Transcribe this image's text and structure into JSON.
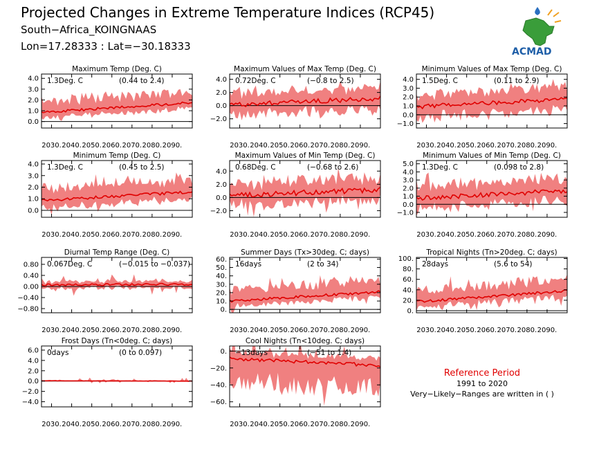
{
  "header": {
    "title": "Projected Changes in Extreme Temperature Indices (RCP45)",
    "location": "South−Africa_KOINGNAAS",
    "coords": "Lon=17.28333 : Lat=−30.18333"
  },
  "logo": {
    "text": "ACMAD"
  },
  "reference": {
    "title": "Reference Period",
    "period": "1991 to 2020",
    "note": "Very−Likely−Ranges are written in ( )"
  },
  "colors": {
    "band": "#f08080",
    "line": "#e00000",
    "zero": "#000000"
  },
  "chart_data": [
    {
      "type": "area",
      "title": "Maximum Temp (Deg. C)",
      "change": "1.3Deg. C",
      "range": "(0.44 to 2.4)",
      "xlim": [
        2025,
        2100
      ],
      "ylim": [
        -0.6,
        4.4
      ],
      "yticks": [
        0.0,
        1.0,
        2.0,
        3.0,
        4.0
      ],
      "ytick_labels": [
        "0.0",
        "1.0",
        "2.0",
        "3.0",
        "4.0"
      ],
      "trend_start": 0.85,
      "trend_end": 1.75,
      "band_low": 0.5,
      "band_high": 1.0,
      "noise": 0.12,
      "spike": 0.5
    },
    {
      "type": "area",
      "title": "Maximum Values of Max Temp (Deg. C)",
      "change": "0.72Deg. C",
      "range": "(−0.8 to 2.5)",
      "xlim": [
        2025,
        2100
      ],
      "ylim": [
        -3.4,
        4.8
      ],
      "yticks": [
        -2.0,
        0.0,
        2.0,
        4.0
      ],
      "ytick_labels": [
        "−2.0",
        "0.0",
        "2.0",
        "4.0"
      ],
      "trend_start": 0.1,
      "trend_end": 1.1,
      "band_low": 1.6,
      "band_high": 1.6,
      "noise": 0.35,
      "spike": 1.0
    },
    {
      "type": "area",
      "title": "Minimum Values of Max Temp (Deg. C)",
      "change": "1.5Deg. C",
      "range": "(0.11 to 2.9)",
      "xlim": [
        2025,
        2100
      ],
      "ylim": [
        -1.5,
        4.6
      ],
      "yticks": [
        -1.0,
        0.0,
        1.0,
        2.0,
        3.0,
        4.0
      ],
      "ytick_labels": [
        "−1.0",
        "0.0",
        "1.0",
        "2.0",
        "3.0",
        "4.0"
      ],
      "trend_start": 0.9,
      "trend_end": 1.8,
      "band_low": 1.2,
      "band_high": 1.3,
      "noise": 0.25,
      "spike": 0.9
    },
    {
      "type": "area",
      "title": "Minimum Temp (Deg. C)",
      "change": "1.3Deg. C",
      "range": "(0.45 to 2.5)",
      "xlim": [
        2025,
        2100
      ],
      "ylim": [
        -0.6,
        4.3
      ],
      "yticks": [
        0.0,
        1.0,
        2.0,
        3.0,
        4.0
      ],
      "ytick_labels": [
        "0.0",
        "1.0",
        "2.0",
        "3.0",
        "4.0"
      ],
      "trend_start": 0.85,
      "trend_end": 1.6,
      "band_low": 0.6,
      "band_high": 1.1,
      "noise": 0.12,
      "spike": 0.5
    },
    {
      "type": "area",
      "title": "Maximum Values of Min Temp (Deg. C)",
      "change": "0.68Deg. C",
      "range": "(−0.68 to 2.6)",
      "xlim": [
        2025,
        2100
      ],
      "ylim": [
        -3.0,
        5.6
      ],
      "yticks": [
        -2.0,
        0.0,
        2.0,
        4.0
      ],
      "ytick_labels": [
        "−2.0",
        "0.0",
        "2.0",
        "4.0"
      ],
      "trend_start": 0.3,
      "trend_end": 1.2,
      "band_low": 1.5,
      "band_high": 1.8,
      "noise": 0.4,
      "spike": 1.2
    },
    {
      "type": "area",
      "title": "Minimum Values of Min Temp (Deg. C)",
      "change": "1.3Deg. C",
      "range": "(0.098 to 2.8)",
      "xlim": [
        2025,
        2100
      ],
      "ylim": [
        -1.6,
        5.4
      ],
      "yticks": [
        -1.0,
        0.0,
        1.0,
        2.0,
        3.0,
        4.0,
        5.0
      ],
      "ytick_labels": [
        "−1.0",
        "0.0",
        "1.0",
        "2.0",
        "3.0",
        "4.0",
        "5.0"
      ],
      "trend_start": 0.7,
      "trend_end": 1.7,
      "band_low": 1.2,
      "band_high": 1.5,
      "noise": 0.3,
      "spike": 1.0
    },
    {
      "type": "area",
      "title": "Diurnal Temp Range (Deg. C)",
      "change": "0.067Deg. C",
      "range": "(−0.015 to −0.037)",
      "xlim": [
        2025,
        2100
      ],
      "ylim": [
        -0.95,
        1.05
      ],
      "yticks": [
        -0.8,
        -0.4,
        0.0,
        0.4,
        0.8
      ],
      "ytick_labels": [
        "−0.80",
        "−0.40",
        "0.00",
        "0.40",
        "0.80"
      ],
      "trend_start": 0.05,
      "trend_end": 0.08,
      "band_low": 0.12,
      "band_high": 0.12,
      "noise": 0.04,
      "spike": 0.3
    },
    {
      "type": "area",
      "title": "Summer Days (Tx>30deg. C; days)",
      "change": "16days",
      "range": "(2 to 34)",
      "xlim": [
        2025,
        2100
      ],
      "ylim": [
        -4,
        62
      ],
      "yticks": [
        0,
        10,
        20,
        30,
        40,
        50,
        60
      ],
      "ytick_labels": [
        "0.",
        "10.",
        "20.",
        "30.",
        "40.",
        "50.",
        "60."
      ],
      "trend_start": 10,
      "trend_end": 21,
      "band_low": 6,
      "band_high": 14,
      "noise": 1.5,
      "spike": 10
    },
    {
      "type": "area",
      "title": "Tropical Nights (Tn>20deg. C; days)",
      "change": "28days",
      "range": "(5.6 to 54)",
      "xlim": [
        2025,
        2100
      ],
      "ylim": [
        -4,
        102
      ],
      "yticks": [
        0,
        20,
        40,
        60,
        80,
        100
      ],
      "ytick_labels": [
        "0.",
        "20.",
        "40.",
        "60.",
        "80.",
        "100."
      ],
      "trend_start": 17,
      "trend_end": 38,
      "band_low": 10,
      "band_high": 22,
      "noise": 2.5,
      "spike": 18
    },
    {
      "type": "area",
      "title": "Frost Days (Tn<0deg. C; days)",
      "change": "0days",
      "range": "(0 to 0.097)",
      "xlim": [
        2025,
        2100
      ],
      "ylim": [
        -5.0,
        6.8
      ],
      "yticks": [
        -4.0,
        -2.0,
        0.0,
        2.0,
        4.0,
        6.0
      ],
      "ytick_labels": [
        "−4.0",
        "−2.0",
        "0.0",
        "2.0",
        "4.0",
        "6.0"
      ],
      "trend_start": 0.05,
      "trend_end": 0.0,
      "band_low": 0.0,
      "band_high": 0.12,
      "noise": 0.02,
      "spike": 0.5
    },
    {
      "type": "area",
      "title": "Cool Nights (Tn<10deg. C; days)",
      "change": "−13days",
      "range": "(−51 to 1.4)",
      "xlim": [
        2025,
        2100
      ],
      "ylim": [
        -66,
        6
      ],
      "yticks": [
        0,
        -20,
        -40,
        -60
      ],
      "ytick_labels": [
        "0.",
        "−20.",
        "−40.",
        "−60."
      ],
      "trend_start": -9,
      "trend_end": -17,
      "band_low": 28,
      "band_high": 8,
      "noise": 2,
      "spike": 20
    }
  ],
  "x_tick_labels": [
    "2030.",
    "2040.",
    "2050.",
    "2060.",
    "2070.",
    "2080.",
    "2090."
  ],
  "x_tick_years": [
    2030,
    2040,
    2050,
    2060,
    2070,
    2080,
    2090
  ]
}
